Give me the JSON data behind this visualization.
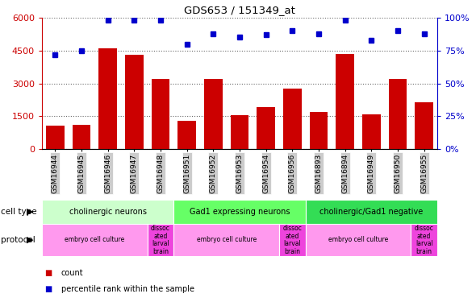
{
  "title": "GDS653 / 151349_at",
  "samples": [
    "GSM16944",
    "GSM16945",
    "GSM16946",
    "GSM16947",
    "GSM16948",
    "GSM16951",
    "GSM16952",
    "GSM16953",
    "GSM16954",
    "GSM16956",
    "GSM16893",
    "GSM16894",
    "GSM16949",
    "GSM16950",
    "GSM16955"
  ],
  "counts": [
    1050,
    1100,
    4600,
    4300,
    3200,
    1300,
    3200,
    1550,
    1900,
    2750,
    1700,
    4350,
    1600,
    3200,
    2150
  ],
  "percentiles": [
    72,
    75,
    98,
    98,
    98,
    80,
    88,
    85,
    87,
    90,
    88,
    98,
    83,
    90,
    88
  ],
  "bar_color": "#cc0000",
  "dot_color": "#0000cc",
  "ylim_left": [
    0,
    6000
  ],
  "ylim_right": [
    0,
    100
  ],
  "yticks_left": [
    0,
    1500,
    3000,
    4500,
    6000
  ],
  "yticks_right": [
    0,
    25,
    50,
    75,
    100
  ],
  "cell_type_groups": [
    {
      "label": "cholinergic neurons",
      "start": 0,
      "end": 5,
      "color": "#ccffcc"
    },
    {
      "label": "Gad1 expressing neurons",
      "start": 5,
      "end": 10,
      "color": "#66ff66"
    },
    {
      "label": "cholinergic/Gad1 negative",
      "start": 10,
      "end": 15,
      "color": "#33dd55"
    }
  ],
  "protocol_groups": [
    {
      "label": "embryo cell culture",
      "start": 0,
      "end": 4,
      "color": "#ff99ee"
    },
    {
      "label": "dissoc\nated\nlarval\nbrain",
      "start": 4,
      "end": 5,
      "color": "#ee44dd"
    },
    {
      "label": "embryo cell culture",
      "start": 5,
      "end": 9,
      "color": "#ff99ee"
    },
    {
      "label": "dissoc\nated\nlarval\nbrain",
      "start": 9,
      "end": 10,
      "color": "#ee44dd"
    },
    {
      "label": "embryo cell culture",
      "start": 10,
      "end": 14,
      "color": "#ff99ee"
    },
    {
      "label": "dissoc\nated\nlarval\nbrain",
      "start": 14,
      "end": 15,
      "color": "#ee44dd"
    }
  ],
  "cell_type_label": "cell type",
  "protocol_label": "protocol",
  "legend_count_label": "count",
  "legend_pct_label": "percentile rank within the sample",
  "bar_color_label": "#cc0000",
  "dot_color_label": "#0000cc",
  "grid_color": "#666666",
  "axis_color_left": "#cc0000",
  "axis_color_right": "#0000cc",
  "bg_color": "#ffffff",
  "tick_box_color": "#cccccc"
}
